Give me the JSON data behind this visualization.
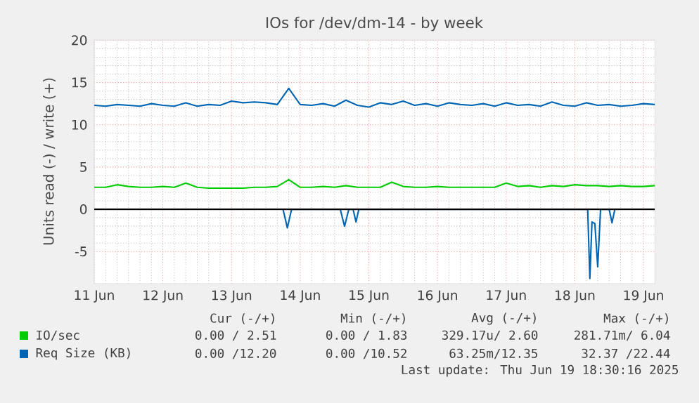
{
  "chart_data": {
    "type": "line",
    "title": "IOs for /dev/dm-14 - by week",
    "ylabel": "Units read (-) / write (+)",
    "x": [
      "2025-06-11T12:00",
      "2025-06-11T16:00",
      "2025-06-11T20:00",
      "2025-06-12T00:00",
      "2025-06-12T04:00",
      "2025-06-12T08:00",
      "2025-06-12T12:00",
      "2025-06-12T16:00",
      "2025-06-12T20:00",
      "2025-06-13T00:00",
      "2025-06-13T04:00",
      "2025-06-13T08:00",
      "2025-06-13T12:00",
      "2025-06-13T16:00",
      "2025-06-13T20:00",
      "2025-06-14T00:00",
      "2025-06-14T04:00",
      "2025-06-14T08:00",
      "2025-06-14T12:00",
      "2025-06-14T16:00",
      "2025-06-14T20:00",
      "2025-06-15T00:00",
      "2025-06-15T04:00",
      "2025-06-15T08:00",
      "2025-06-15T12:00",
      "2025-06-15T16:00",
      "2025-06-15T20:00",
      "2025-06-16T00:00",
      "2025-06-16T04:00",
      "2025-06-16T08:00",
      "2025-06-16T12:00",
      "2025-06-16T16:00",
      "2025-06-16T20:00",
      "2025-06-17T00:00",
      "2025-06-17T04:00",
      "2025-06-17T08:00",
      "2025-06-17T12:00",
      "2025-06-17T16:00",
      "2025-06-17T20:00",
      "2025-06-18T00:00",
      "2025-06-18T04:00",
      "2025-06-18T08:00",
      "2025-06-18T12:00",
      "2025-06-18T16:00",
      "2025-06-18T20:00",
      "2025-06-19T00:00",
      "2025-06-19T04:00",
      "2025-06-19T08:00",
      "2025-06-19T12:00",
      "2025-06-19T16:00"
    ],
    "series": [
      {
        "name": "IO/sec",
        "color": "#00cc00",
        "values": [
          2.6,
          2.6,
          2.9,
          2.7,
          2.6,
          2.6,
          2.7,
          2.6,
          3.1,
          2.6,
          2.5,
          2.5,
          2.5,
          2.5,
          2.6,
          2.6,
          2.7,
          3.5,
          2.6,
          2.6,
          2.7,
          2.6,
          2.8,
          2.6,
          2.6,
          2.6,
          3.2,
          2.7,
          2.6,
          2.6,
          2.7,
          2.6,
          2.6,
          2.6,
          2.6,
          2.6,
          3.1,
          2.7,
          2.8,
          2.6,
          2.8,
          2.7,
          2.9,
          2.8,
          2.8,
          2.7,
          2.8,
          2.7,
          2.7,
          2.8
        ]
      },
      {
        "name": "Req Size (KB)",
        "color": "#0066b3",
        "values": [
          12.3,
          12.2,
          12.4,
          12.3,
          12.2,
          12.5,
          12.3,
          12.2,
          12.6,
          12.2,
          12.4,
          12.3,
          12.8,
          12.6,
          12.7,
          12.6,
          12.4,
          14.3,
          12.4,
          12.3,
          12.5,
          12.2,
          12.9,
          12.3,
          12.1,
          12.6,
          12.4,
          12.8,
          12.3,
          12.5,
          12.2,
          12.6,
          12.4,
          12.3,
          12.5,
          12.2,
          12.6,
          12.3,
          12.4,
          12.2,
          12.7,
          12.3,
          12.2,
          12.6,
          12.3,
          12.4,
          12.2,
          12.3,
          12.5,
          12.4
        ]
      },
      {
        "color": "#0066b3",
        "x": [
          "2025-06-14T06:00",
          "2025-06-14T07:30",
          "2025-06-14T09:00",
          "2025-06-15T02:00",
          "2025-06-15T03:30",
          "2025-06-15T05:00",
          "2025-06-15T06:30",
          "2025-06-15T07:30",
          "2025-06-15T08:30",
          "2025-06-18T16:30",
          "2025-06-18T17:15",
          "2025-06-18T18:00",
          "2025-06-18T19:00",
          "2025-06-18T20:00",
          "2025-06-18T21:00",
          "2025-06-19T00:00",
          "2025-06-19T01:00",
          "2025-06-19T02:00"
        ],
        "values": [
          0,
          -2.2,
          0,
          0,
          -2.0,
          0,
          0,
          -1.5,
          0,
          0,
          -8.2,
          -1.5,
          -1.7,
          -6.8,
          0,
          0,
          -1.6,
          0
        ]
      }
    ],
    "xlim": [
      "2025-06-11T12:00",
      "2025-06-19T16:00"
    ],
    "xticks": [
      {
        "value": "2025-06-11T12:00",
        "label": "11 Jun"
      },
      {
        "value": "2025-06-12T12:00",
        "label": "12 Jun"
      },
      {
        "value": "2025-06-13T12:00",
        "label": "13 Jun"
      },
      {
        "value": "2025-06-14T12:00",
        "label": "14 Jun"
      },
      {
        "value": "2025-06-15T12:00",
        "label": "15 Jun"
      },
      {
        "value": "2025-06-16T12:00",
        "label": "16 Jun"
      },
      {
        "value": "2025-06-17T12:00",
        "label": "17 Jun"
      },
      {
        "value": "2025-06-18T12:00",
        "label": "18 Jun"
      },
      {
        "value": "2025-06-19T12:00",
        "label": "19 Jun"
      }
    ],
    "ylim": [
      -8.8,
      20
    ],
    "yticks": [
      -5,
      0,
      5,
      10,
      15,
      20
    ],
    "grid": true,
    "legend": "bottom",
    "ref_lines": [
      {
        "axis": "y",
        "value": 0,
        "color": "#000000"
      }
    ],
    "annotations": [
      "Cur (-/+)",
      "Min (-/+)",
      "Avg (-/+)",
      "Max (-/+)",
      "0.00 / 2.51",
      "0.00 / 1.83",
      "329.17u/ 2.60",
      "281.71m/ 6.04",
      "0.00 /12.20",
      "0.00 /10.52",
      "63.25m/12.35",
      "32.37 /22.44",
      "Last update: Thu Jun 19 18:30:16 2025"
    ]
  }
}
